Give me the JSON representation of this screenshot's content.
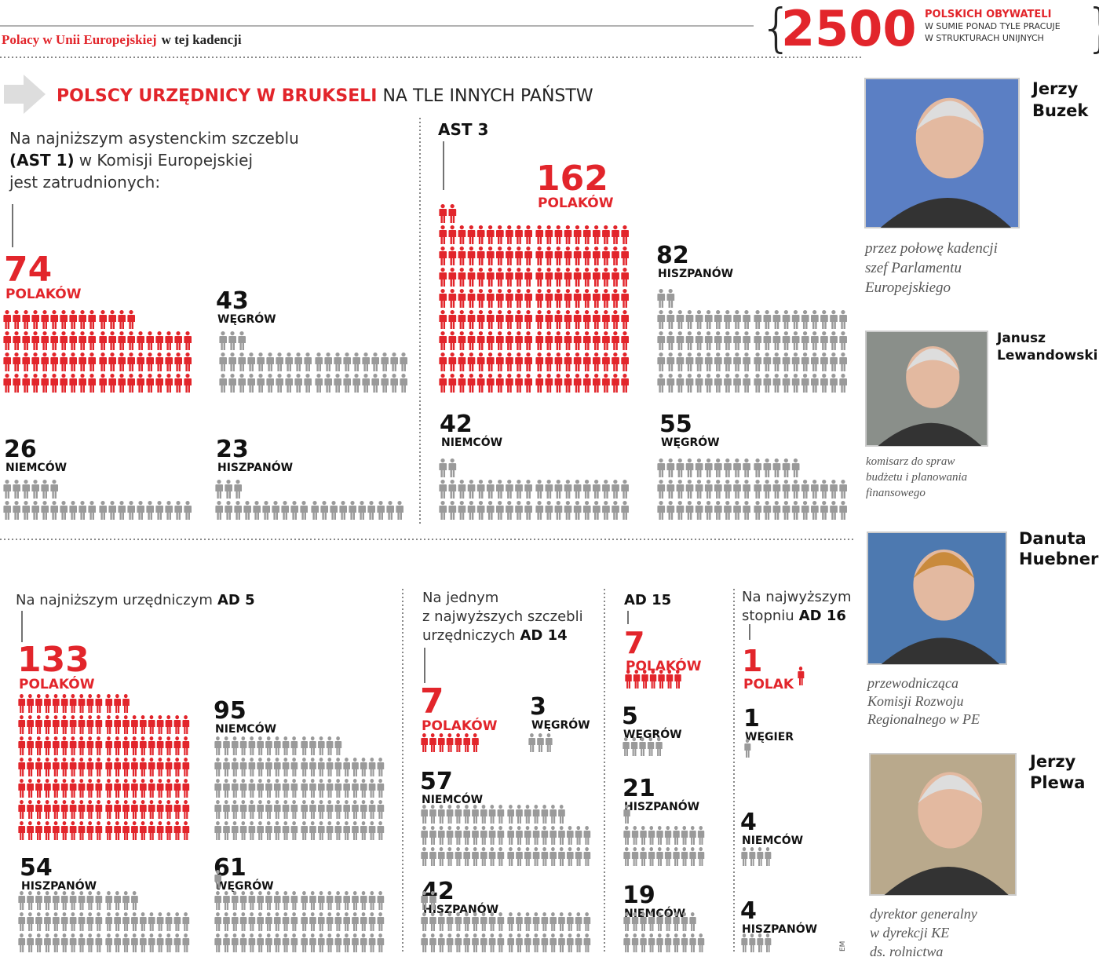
{
  "header": {
    "title_red": "Polacy w Unii Europejskiej",
    "title_black": "w tej kadencji",
    "big_number": "2500",
    "big_label": "POLSKICH OBYWATELI",
    "big_sub": [
      "W SUMIE PONAD TYLE PRACUJE",
      "W STRUKTURACH UNIJNYCH"
    ]
  },
  "heading": {
    "red": "POLSCY URZĘDNICY W BRUKSELI",
    "black": "NA TLE INNYCH PAŃSTW"
  },
  "panels": [
    {
      "intro": [
        "Na najniższym asystenckim szczeblu",
        "w Komisji Europejskiej",
        "jest zatrudnionych:"
      ],
      "grade": "(AST 1)",
      "groups": [
        {
          "value": 74,
          "label": "POLAKÓW",
          "color": "#e2252b"
        },
        {
          "value": 43,
          "label": "WĘGRÓW",
          "color": "#9a9a9a"
        },
        {
          "value": 26,
          "label": "NIEMCÓW",
          "color": "#9a9a9a"
        },
        {
          "value": 23,
          "label": "HISZPANÓW",
          "color": "#9a9a9a"
        }
      ]
    },
    {
      "intro": [],
      "grade": "AST 3",
      "groups": [
        {
          "value": 162,
          "label": "POLAKÓW",
          "color": "#e2252b"
        },
        {
          "value": 82,
          "label": "HISZPANÓW",
          "color": "#9a9a9a"
        },
        {
          "value": 42,
          "label": "NIEMCÓW",
          "color": "#9a9a9a"
        },
        {
          "value": 55,
          "label": "WĘGRÓW",
          "color": "#9a9a9a"
        }
      ]
    },
    {
      "intro": [
        "Na najniższym urzędniczym"
      ],
      "grade": "AD 5",
      "groups": [
        {
          "value": 133,
          "label": "POLAKÓW",
          "color": "#e2252b"
        },
        {
          "value": 95,
          "label": "NIEMCÓW",
          "color": "#9a9a9a"
        },
        {
          "value": 54,
          "label": "HISZPANÓW",
          "color": "#9a9a9a"
        },
        {
          "value": 61,
          "label": "WĘGRÓW",
          "color": "#9a9a9a"
        }
      ]
    },
    {
      "intro": [
        "Na jednym",
        "z najwyższych szczebli",
        "urzędniczych"
      ],
      "grade": "AD 14",
      "groups": [
        {
          "value": 7,
          "label": "POLAKÓW",
          "color": "#e2252b"
        },
        {
          "value": 3,
          "label": "WĘGRÓW",
          "color": "#9a9a9a"
        },
        {
          "value": 57,
          "label": "NIEMCÓW",
          "color": "#9a9a9a"
        },
        {
          "value": 42,
          "label": "HISZPANÓW",
          "color": "#9a9a9a"
        }
      ]
    },
    {
      "intro": [],
      "grade": "AD 15",
      "groups": [
        {
          "value": 7,
          "label": "POLAKÓW",
          "color": "#e2252b"
        },
        {
          "value": 5,
          "label": "WĘGRÓW",
          "color": "#9a9a9a"
        },
        {
          "value": 21,
          "label": "HISZPANÓW",
          "color": "#9a9a9a"
        },
        {
          "value": 19,
          "label": "NIEMCÓW",
          "color": "#9a9a9a"
        }
      ]
    },
    {
      "intro": [
        "Na najwyższym",
        "stopniu"
      ],
      "grade": "AD 16",
      "groups": [
        {
          "value": 1,
          "label": "POLAK",
          "color": "#e2252b"
        },
        {
          "value": 1,
          "label": "WĘGIER",
          "color": "#9a9a9a"
        },
        {
          "value": 4,
          "label": "NIEMCÓW",
          "color": "#9a9a9a"
        },
        {
          "value": 4,
          "label": "HISZPANÓW",
          "color": "#9a9a9a"
        }
      ]
    }
  ],
  "people": [
    {
      "name": [
        "Jerzy",
        "Buzek"
      ],
      "caption": [
        "przez połowę kadencji",
        "szef Parlamentu",
        "Europejskiego"
      ]
    },
    {
      "name": [
        "Janusz",
        "Lewandowski"
      ],
      "caption": [
        "komisarz do spraw",
        "budżetu i planowania",
        "finansowego"
      ]
    },
    {
      "name": [
        "Danuta",
        "Huebner"
      ],
      "caption": [
        "przewodnicząca",
        "Komisji Rozwoju",
        "Regionalnego w PE"
      ]
    },
    {
      "name": [
        "Jerzy",
        "Plewa"
      ],
      "caption": [
        "dyrektor generalny",
        "w dyrekcji KE",
        "ds. rolnictwa"
      ]
    }
  ],
  "credit": "EM"
}
